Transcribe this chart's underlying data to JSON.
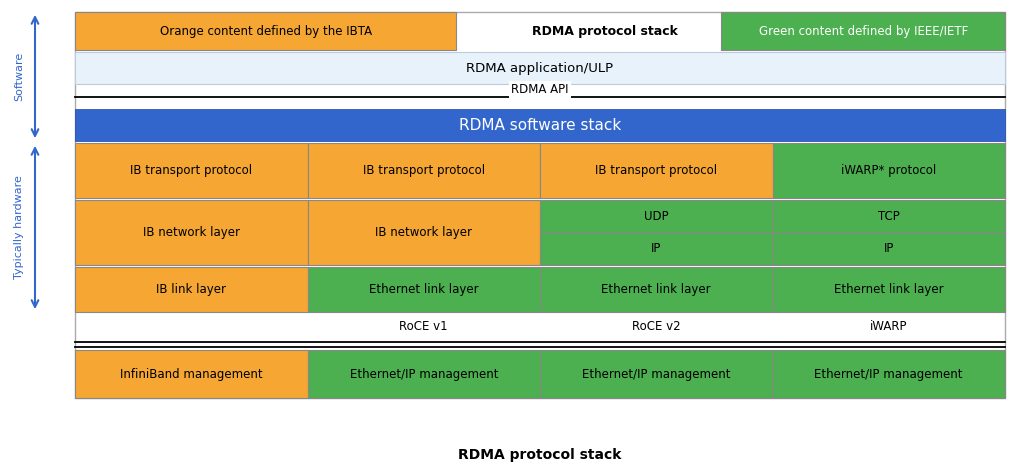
{
  "orange": "#F5A633",
  "green": "#4CAF50",
  "blue": "#3366CC",
  "light_blue_bg": "#E8F2FB",
  "white": "#FFFFFF",
  "outer_bg": "#F0F4F8",
  "legend_orange_text": "Orange content defined by the IBTA",
  "legend_title": "RDMA protocol stack",
  "legend_green_text": "Green content defined by IEEE/IETF",
  "rdma_app_text": "RDMA application/ULP",
  "rdma_api_text": "RDMA API",
  "rdma_stack_text": "RDMA software stack",
  "label_software": "Software",
  "label_hardware": "Typically hardware",
  "bottom_label": "RDMA protocol stack",
  "col_labels": [
    "",
    "RoCE v1",
    "RoCE v2",
    "iWARP"
  ],
  "row0": [
    "IB transport protocol",
    "IB transport protocol",
    "IB transport protocol",
    "iWARP* protocol"
  ],
  "row0_colors": [
    "orange",
    "orange",
    "orange",
    "green"
  ],
  "row1_col01": [
    "IB network layer",
    "IB network layer"
  ],
  "row1_col2": [
    "UDP",
    "IP"
  ],
  "row1_col3": [
    "TCP",
    "IP"
  ],
  "row2": [
    "IB link layer",
    "Ethernet link layer",
    "Ethernet link layer",
    "Ethernet link layer"
  ],
  "row2_colors": [
    "orange",
    "green",
    "green",
    "green"
  ],
  "mgmt": [
    "InfiniBand management",
    "Ethernet/IP management",
    "Ethernet/IP management",
    "Ethernet/IP management"
  ],
  "mgmt_colors": [
    "orange",
    "green",
    "green",
    "green"
  ]
}
